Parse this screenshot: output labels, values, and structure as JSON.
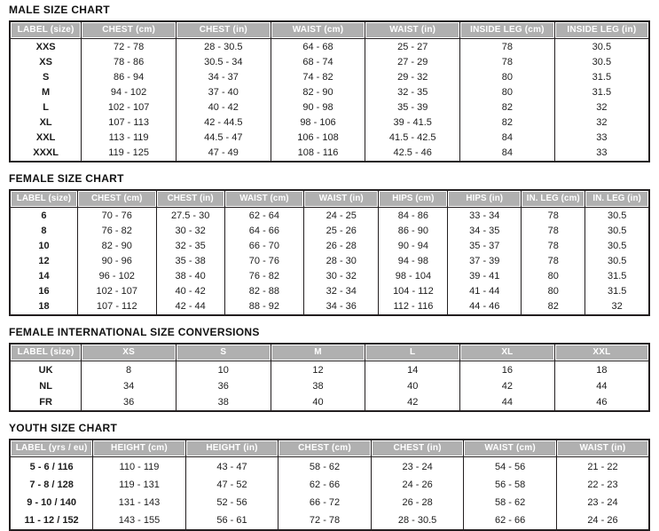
{
  "colors": {
    "background": "#ffffff",
    "header_bg": "#b0b0b0",
    "header_text": "#ffffff",
    "border": "#231f20",
    "body_text": "#1c1c1c"
  },
  "tables": [
    {
      "title": "MALE SIZE CHART",
      "columns": [
        "LABEL (size)",
        "CHEST (cm)",
        "CHEST (in)",
        "WAIST (cm)",
        "WAIST (in)",
        "INSIDE LEG (cm)",
        "INSIDE LEG (in)"
      ],
      "rows": [
        [
          "XXS",
          "72 - 78",
          "28 - 30.5",
          "64 - 68",
          "25 - 27",
          "78",
          "30.5"
        ],
        [
          "XS",
          "78 - 86",
          "30.5 - 34",
          "68 - 74",
          "27 - 29",
          "78",
          "30.5"
        ],
        [
          "S",
          "86 - 94",
          "34 - 37",
          "74 - 82",
          "29 - 32",
          "80",
          "31.5"
        ],
        [
          "M",
          "94 - 102",
          "37 - 40",
          "82 - 90",
          "32 - 35",
          "80",
          "31.5"
        ],
        [
          "L",
          "102 - 107",
          "40 - 42",
          "90 - 98",
          "35 - 39",
          "82",
          "32"
        ],
        [
          "XL",
          "107 - 113",
          "42 - 44.5",
          "98 - 106",
          "39 - 41.5",
          "82",
          "32"
        ],
        [
          "XXL",
          "113 - 119",
          "44.5 - 47",
          "106 - 108",
          "41.5 - 42.5",
          "84",
          "33"
        ],
        [
          "XXXL",
          "119 - 125",
          "47 - 49",
          "108 - 116",
          "42.5 - 46",
          "84",
          "33"
        ]
      ]
    },
    {
      "title": "FEMALE SIZE CHART",
      "columns": [
        "LABEL (size)",
        "CHEST (cm)",
        "CHEST (in)",
        "WAIST (cm)",
        "WAIST (in)",
        "HIPS (cm)",
        "HIPS (in)",
        "IN. LEG (cm)",
        "IN. LEG (in)"
      ],
      "rows": [
        [
          "6",
          "70 - 76",
          "27.5 - 30",
          "62 - 64",
          "24 - 25",
          "84 - 86",
          "33 - 34",
          "78",
          "30.5"
        ],
        [
          "8",
          "76 - 82",
          "30 - 32",
          "64 - 66",
          "25 - 26",
          "86 - 90",
          "34 - 35",
          "78",
          "30.5"
        ],
        [
          "10",
          "82 - 90",
          "32 - 35",
          "66 - 70",
          "26 - 28",
          "90 - 94",
          "35 - 37",
          "78",
          "30.5"
        ],
        [
          "12",
          "90 - 96",
          "35 - 38",
          "70 - 76",
          "28 - 30",
          "94 - 98",
          "37 - 39",
          "78",
          "30.5"
        ],
        [
          "14",
          "96 - 102",
          "38 - 40",
          "76 - 82",
          "30 - 32",
          "98 - 104",
          "39 - 41",
          "80",
          "31.5"
        ],
        [
          "16",
          "102 - 107",
          "40 - 42",
          "82 - 88",
          "32 - 34",
          "104 - 112",
          "41 - 44",
          "80",
          "31.5"
        ],
        [
          "18",
          "107 - 112",
          "42 - 44",
          "88 - 92",
          "34 - 36",
          "112 - 116",
          "44 - 46",
          "82",
          "32"
        ]
      ]
    },
    {
      "title": "FEMALE INTERNATIONAL SIZE CONVERSIONS",
      "columns": [
        "LABEL (size)",
        "XS",
        "S",
        "M",
        "L",
        "XL",
        "XXL"
      ],
      "rows": [
        [
          "UK",
          "8",
          "10",
          "12",
          "14",
          "16",
          "18"
        ],
        [
          "NL",
          "34",
          "36",
          "38",
          "40",
          "42",
          "44"
        ],
        [
          "FR",
          "36",
          "38",
          "40",
          "42",
          "44",
          "46"
        ]
      ]
    },
    {
      "title": "YOUTH SIZE CHART",
      "columns": [
        "LABEL (yrs / eu)",
        "HEIGHT (cm)",
        "HEIGHT (in)",
        "CHEST (cm)",
        "CHEST (in)",
        "WAIST (cm)",
        "WAIST (in)"
      ],
      "rows": [
        [
          "5 - 6 / 116",
          "110 - 119",
          "43 - 47",
          "58 - 62",
          "23 - 24",
          "54 - 56",
          "21 - 22"
        ],
        [
          "7 - 8 / 128",
          "119 - 131",
          "47 - 52",
          "62 - 66",
          "24 - 26",
          "56 - 58",
          "22 - 23"
        ],
        [
          "9 - 10 / 140",
          "131 - 143",
          "52 - 56",
          "66 - 72",
          "26 - 28",
          "58 - 62",
          "23 - 24"
        ],
        [
          "11 - 12 / 152",
          "143 - 155",
          "56 - 61",
          "72 - 78",
          "28 - 30.5",
          "62 - 66",
          "24 - 26"
        ]
      ]
    }
  ]
}
